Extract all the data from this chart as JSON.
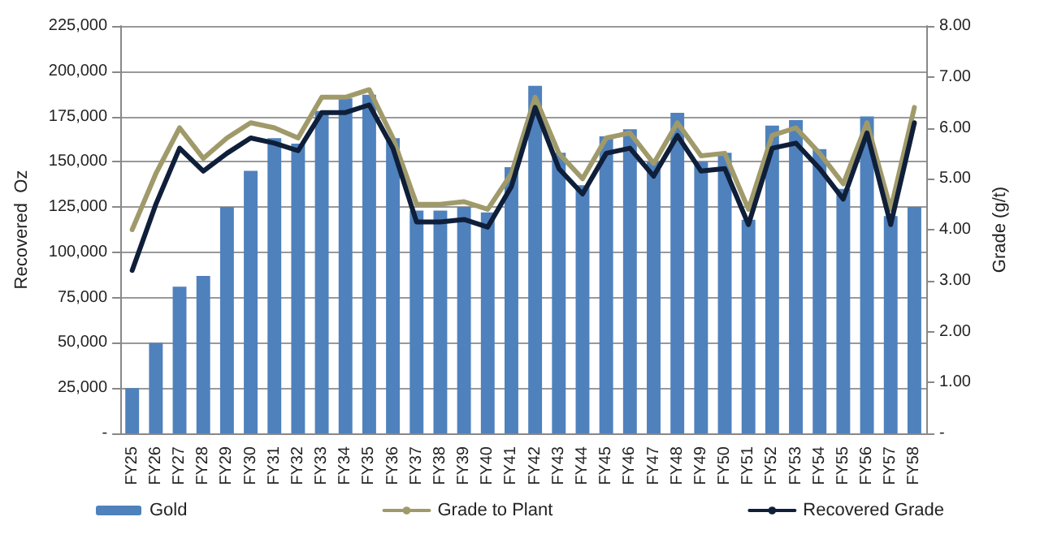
{
  "chart_data": {
    "type": "bar",
    "categories": [
      "FY25",
      "FY26",
      "FY27",
      "FY28",
      "FY29",
      "FY30",
      "FY31",
      "FY32",
      "FY33",
      "FY34",
      "FY35",
      "FY36",
      "FY37",
      "FY38",
      "FY39",
      "FY40",
      "FY41",
      "FY42",
      "FY43",
      "FY44",
      "FY45",
      "FY46",
      "FY47",
      "FY48",
      "FY49",
      "FY50",
      "FY51",
      "FY52",
      "FY53",
      "FY54",
      "FY55",
      "FY56",
      "FY57",
      "FY58"
    ],
    "series": [
      {
        "name": "Gold",
        "color": "#4f81bd",
        "values": [
          25000,
          50000,
          81000,
          87000,
          125000,
          145000,
          163000,
          160000,
          178000,
          185000,
          187000,
          163000,
          123000,
          123000,
          125000,
          122000,
          147000,
          192000,
          155000,
          137000,
          164000,
          168000,
          150000,
          177000,
          150000,
          155000,
          118000,
          170000,
          173000,
          157000,
          135000,
          175000,
          120000,
          125000
        ]
      },
      {
        "name": "Grade to Plant",
        "type": "line",
        "axis": "y2",
        "color": "#a09a6a",
        "values": [
          4.0,
          5.1,
          6.0,
          5.4,
          5.8,
          6.1,
          6.0,
          5.8,
          6.6,
          6.6,
          6.75,
          5.8,
          4.5,
          4.5,
          4.55,
          4.4,
          5.1,
          6.6,
          5.5,
          5.0,
          5.8,
          5.9,
          5.3,
          6.1,
          5.45,
          5.5,
          4.4,
          5.85,
          6.0,
          5.5,
          4.9,
          6.1,
          4.4,
          6.4
        ]
      },
      {
        "name": "Recovered Grade",
        "type": "line",
        "axis": "y2",
        "color": "#0f1f3a",
        "values": [
          3.2,
          4.5,
          5.6,
          5.15,
          5.5,
          5.8,
          5.7,
          5.55,
          6.3,
          6.3,
          6.45,
          5.6,
          4.15,
          4.15,
          4.2,
          4.05,
          4.85,
          6.4,
          5.2,
          4.7,
          5.5,
          5.6,
          5.05,
          5.85,
          5.15,
          5.2,
          4.1,
          5.6,
          5.7,
          5.2,
          4.6,
          5.9,
          4.1,
          6.1
        ]
      }
    ],
    "ylabel": "Recovered  Oz",
    "y2label": "Grade (g/t)",
    "ylim": [
      0,
      225000
    ],
    "yticks": [
      {
        "value": 0,
        "label": "-"
      },
      {
        "value": 25000,
        "label": "25,000"
      },
      {
        "value": 50000,
        "label": "50,000"
      },
      {
        "value": 75000,
        "label": "75,000"
      },
      {
        "value": 100000,
        "label": "100,000"
      },
      {
        "value": 125000,
        "label": "125,000"
      },
      {
        "value": 150000,
        "label": "150,000"
      },
      {
        "value": 175000,
        "label": "175,000"
      },
      {
        "value": 200000,
        "label": "200,000"
      },
      {
        "value": 225000,
        "label": "225,000"
      }
    ],
    "y2lim": [
      0,
      8
    ],
    "y2ticks": [
      {
        "value": 0,
        "label": "-"
      },
      {
        "value": 1,
        "label": "1.00"
      },
      {
        "value": 2,
        "label": "2.00"
      },
      {
        "value": 3,
        "label": "3.00"
      },
      {
        "value": 4,
        "label": "4.00"
      },
      {
        "value": 5,
        "label": "5.00"
      },
      {
        "value": 6,
        "label": "6.00"
      },
      {
        "value": 7,
        "label": "7.00"
      },
      {
        "value": 8,
        "label": "8.00"
      }
    ],
    "grid": "y",
    "legend": "bottom",
    "marker": "none",
    "line_style": "solid"
  }
}
